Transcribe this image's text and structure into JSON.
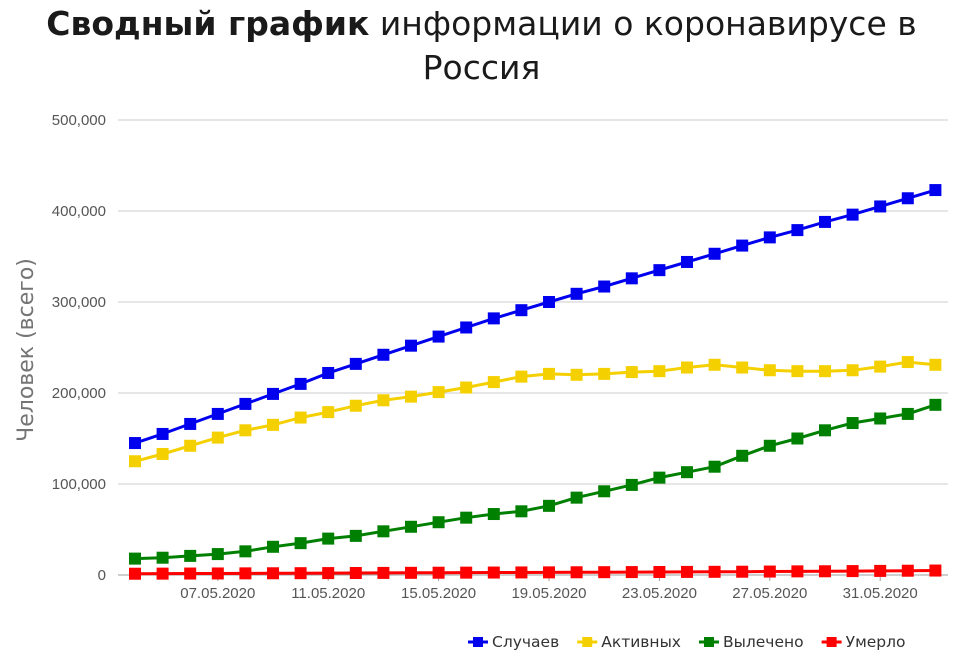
{
  "title": {
    "bold": "Сводный график",
    "rest": "информации о коронавирусе в Россия"
  },
  "chart_data": {
    "type": "line",
    "title": "Сводный график информации о коронавирусе в Россия",
    "xlabel": "",
    "ylabel": "Человек (всего)",
    "ylim": [
      0,
      500000
    ],
    "yticks": [
      "0",
      "100,000",
      "200,000",
      "300,000",
      "400,000",
      "500,000"
    ],
    "x": [
      "04.05.2020",
      "05.05.2020",
      "06.05.2020",
      "07.05.2020",
      "08.05.2020",
      "09.05.2020",
      "10.05.2020",
      "11.05.2020",
      "12.05.2020",
      "13.05.2020",
      "14.05.2020",
      "15.05.2020",
      "16.05.2020",
      "17.05.2020",
      "18.05.2020",
      "19.05.2020",
      "20.05.2020",
      "21.05.2020",
      "22.05.2020",
      "23.05.2020",
      "24.05.2020",
      "25.05.2020",
      "26.05.2020",
      "27.05.2020",
      "28.05.2020",
      "29.05.2020",
      "30.05.2020",
      "31.05.2020",
      "01.06.2020",
      "02.06.2020"
    ],
    "xtick_labels": [
      "07.05.2020",
      "11.05.2020",
      "15.05.2020",
      "19.05.2020",
      "23.05.2020",
      "27.05.2020",
      "31.05.2020"
    ],
    "grid": true,
    "legend_position": "bottom-right",
    "series": [
      {
        "name": "Случаев",
        "color": "#0000ee",
        "values": [
          145000,
          155000,
          166000,
          177000,
          188000,
          199000,
          210000,
          222000,
          232000,
          242000,
          252000,
          262000,
          272000,
          282000,
          291000,
          300000,
          309000,
          317000,
          326000,
          335000,
          344000,
          353000,
          362000,
          371000,
          379000,
          388000,
          396000,
          405000,
          414000,
          423000
        ]
      },
      {
        "name": "Активных",
        "color": "#f5d000",
        "values": [
          125000,
          133000,
          142000,
          151000,
          159000,
          165000,
          173000,
          179000,
          186000,
          192000,
          196000,
          201000,
          206000,
          212000,
          218000,
          221000,
          220000,
          221000,
          223000,
          224000,
          228000,
          231000,
          228000,
          225000,
          224000,
          224000,
          225000,
          229000,
          234000,
          231000
        ]
      },
      {
        "name": "Вылечено",
        "color": "#008000",
        "values": [
          18000,
          19000,
          21000,
          23000,
          26000,
          31000,
          35000,
          40000,
          43000,
          48000,
          53000,
          58000,
          63000,
          67000,
          70000,
          76000,
          85000,
          92000,
          99000,
          107000,
          113000,
          119000,
          131000,
          142000,
          150000,
          159000,
          167000,
          172000,
          177000,
          187000
        ]
      },
      {
        "name": "Умерло",
        "color": "#ff0000",
        "values": [
          1400,
          1500,
          1600,
          1700,
          1800,
          1900,
          2000,
          2100,
          2200,
          2300,
          2400,
          2500,
          2600,
          2700,
          2800,
          2900,
          3000,
          3100,
          3200,
          3300,
          3400,
          3500,
          3600,
          3800,
          4000,
          4100,
          4300,
          4500,
          4700,
          4900
        ]
      }
    ]
  }
}
